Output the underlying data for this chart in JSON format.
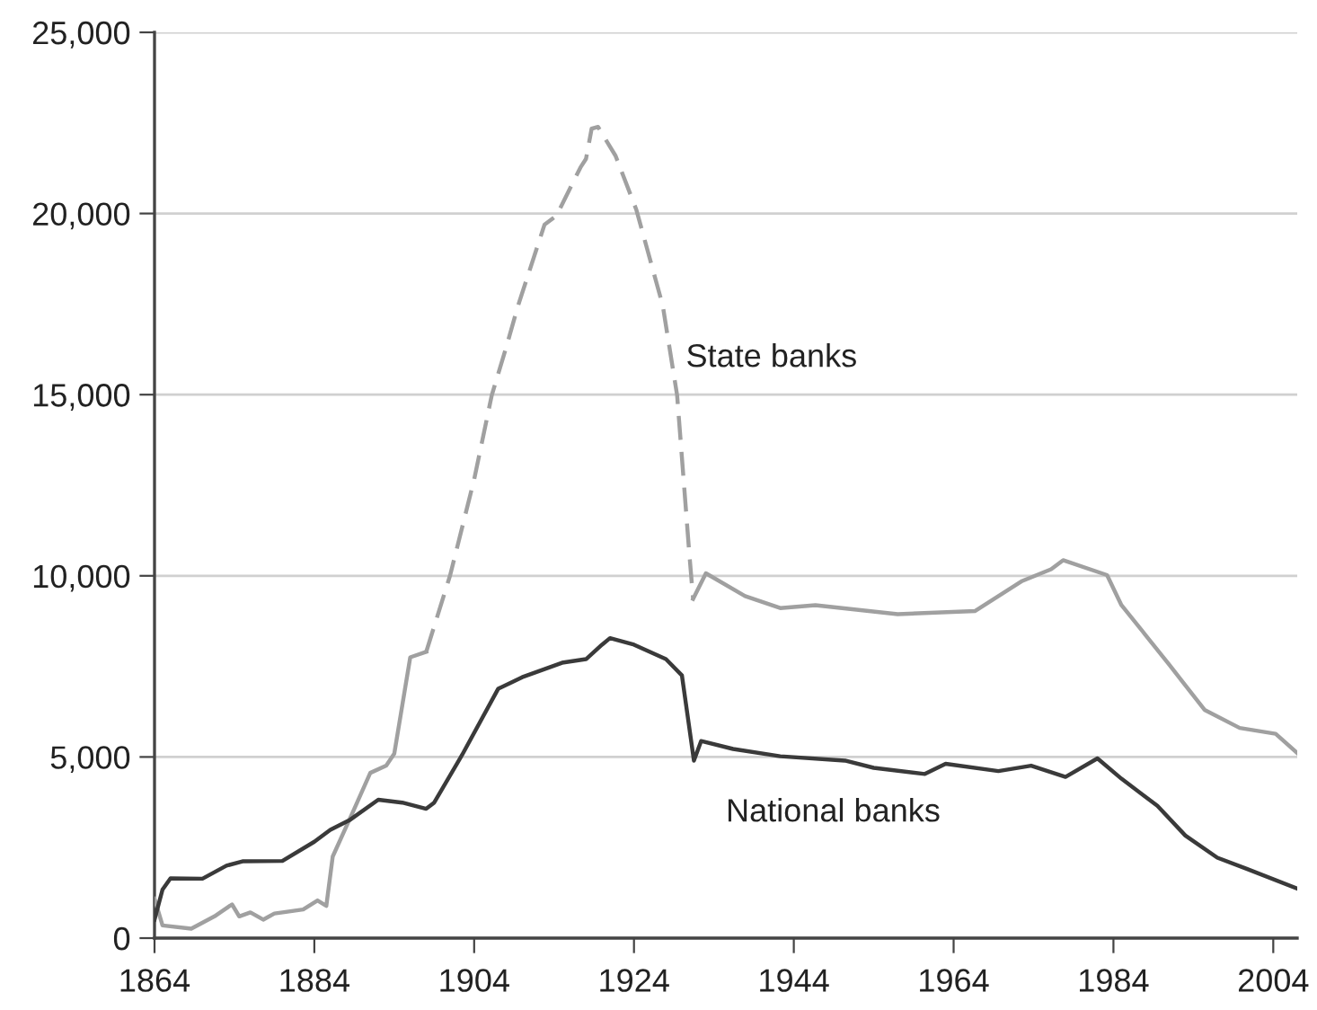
{
  "chart_data": {
    "type": "line",
    "xlim": [
      1864,
      2007
    ],
    "xticks": [
      1864,
      1884,
      1904,
      1924,
      1944,
      1964,
      1984,
      2004
    ],
    "ylim": [
      0,
      25000
    ],
    "yticks": [
      {
        "value": 0,
        "label": "0"
      },
      {
        "value": 5000,
        "label": "5,000"
      },
      {
        "value": 10000,
        "label": "10,000"
      },
      {
        "value": 15000,
        "label": "15,000"
      },
      {
        "value": 20000,
        "label": "20,000"
      },
      {
        "value": 25000,
        "label": "25,000"
      }
    ],
    "grid": "y",
    "marker": "none",
    "series": [
      {
        "color": "#a0a0a0",
        "line_style": "solid",
        "x": [
          1864,
          1865,
          1868.6,
          1871.5,
          1873.7,
          1874.6,
          1876,
          1877.6,
          1879,
          1882.6,
          1884.4,
          1885.5,
          1886.3,
          1889,
          1891,
          1893,
          1894,
          1896,
          1898,
          1915,
          1931.4,
          1933,
          1937.9,
          1942.3,
          1946.7,
          1957,
          1966.7,
          1972.6,
          1976.2,
          1977.7,
          1983.2,
          1985,
          1988,
          1991,
          1995.4,
          1999.8,
          2004.3,
          2007
        ],
        "values": [
          1090,
          350,
          260,
          600,
          930,
          600,
          710,
          510,
          680,
          790,
          1040,
          890,
          2250,
          3570,
          4560,
          4760,
          5090,
          7750,
          7900,
          null,
          9360,
          10070,
          9440,
          9110,
          9190,
          8940,
          9030,
          9860,
          10180,
          10430,
          10020,
          9190,
          8370,
          7540,
          6300,
          5800,
          5640,
          5110
        ]
      },
      {
        "color": "#a0a0a0",
        "line_style": "dashed",
        "x": [
          1898,
          1901,
          1904,
          1906.2,
          1908,
          1909.5,
          1912.8,
          1914.3,
          1917.3,
          1918,
          1918.7,
          1919.5,
          1921.7,
          1924.3,
          1927.6,
          1929.4,
          1930.9,
          1931.4
        ],
        "values": [
          7900,
          10020,
          12660,
          14980,
          16300,
          17460,
          19690,
          19940,
          21270,
          21510,
          22340,
          22390,
          21590,
          20100,
          17460,
          14980,
          10680,
          9360
        ]
      },
      {
        "color": "#3a3a3a",
        "line_style": "solid",
        "x": [
          1864,
          1865,
          1866,
          1870,
          1873,
          1875,
          1880,
          1884,
          1886,
          1888.5,
          1892,
          1895,
          1898,
          1899,
          1902.5,
          1907,
          1910,
          1915,
          1918,
          1920,
          1921,
          1924,
          1926,
          1928,
          1930,
          1931.5,
          1932.4,
          1936.4,
          1942.3,
          1950.4,
          1954,
          1960.4,
          1963,
          1969.6,
          1973.7,
          1978,
          1982,
          1985,
          1989.5,
          1993,
          1997,
          2000.6,
          2007
        ],
        "values": [
          510,
          1340,
          1650,
          1640,
          2000,
          2120,
          2130,
          2660,
          2990,
          3270,
          3820,
          3740,
          3570,
          3740,
          5060,
          6880,
          7200,
          7600,
          7700,
          8100,
          8280,
          8100,
          7900,
          7700,
          7250,
          4900,
          5440,
          5220,
          5020,
          4900,
          4700,
          4530,
          4810,
          4610,
          4760,
          4450,
          4960,
          4400,
          3650,
          2830,
          2220,
          1920,
          1370
        ]
      }
    ],
    "annotations": [
      "State banks",
      "National banks"
    ]
  }
}
